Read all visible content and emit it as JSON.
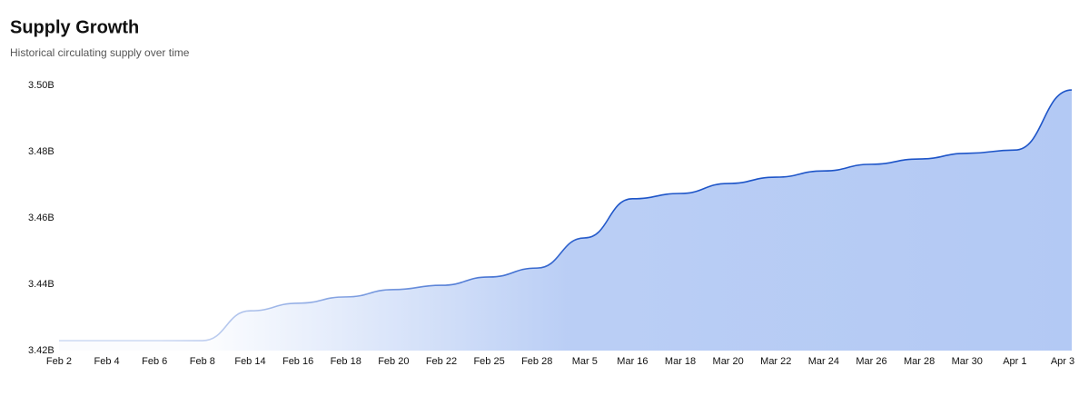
{
  "chart_data": {
    "type": "area",
    "title": "Supply Growth",
    "subtitle": "Historical circulating supply over time",
    "categories": [
      "Feb 2",
      "Feb 4",
      "Feb 6",
      "Feb 8",
      "Feb 14",
      "Feb 16",
      "Feb 18",
      "Feb 20",
      "Feb 22",
      "Feb 25",
      "Feb 28",
      "Mar 5",
      "Mar 16",
      "Mar 18",
      "Mar 20",
      "Mar 22",
      "Mar 24",
      "Mar 26",
      "Mar 28",
      "Mar 30",
      "Apr 1",
      "Apr 3"
    ],
    "values": [
      3.423,
      3.423,
      3.423,
      3.423,
      3.432,
      3.4343,
      3.4362,
      3.4384,
      3.4397,
      3.4422,
      3.4449,
      3.454,
      3.4658,
      3.4674,
      3.4704,
      3.4723,
      3.4742,
      3.4762,
      3.4778,
      3.4795,
      3.4805,
      3.4986
    ],
    "color": "#1e55c8",
    "fill_color": "#b3c9f4",
    "ylim": [
      3.42,
      3.5
    ],
    "yticks": [
      {
        "value": 3.42,
        "label": "3.42B"
      },
      {
        "value": 3.44,
        "label": "3.44B"
      },
      {
        "value": 3.46,
        "label": "3.46B"
      },
      {
        "value": 3.48,
        "label": "3.48B"
      },
      {
        "value": 3.5,
        "label": "3.50B"
      }
    ],
    "grid": false
  }
}
